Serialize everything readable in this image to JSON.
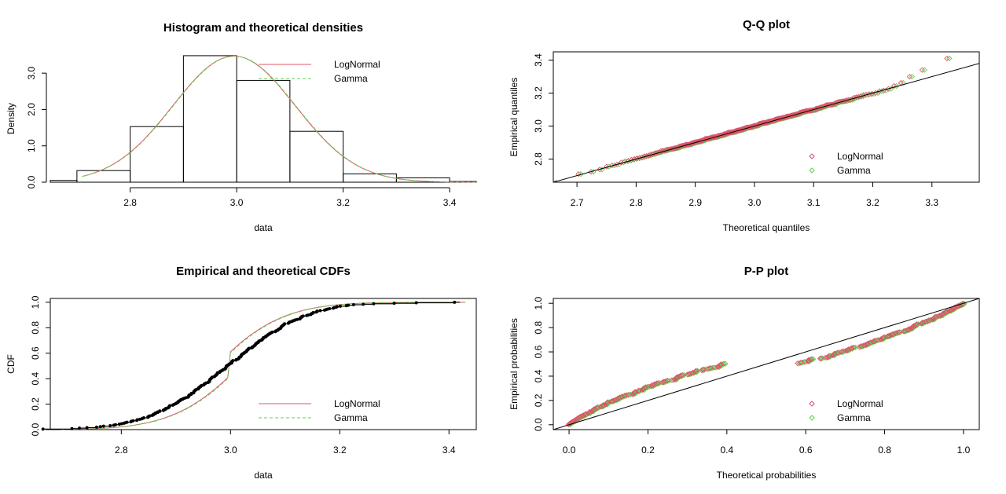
{
  "colors": {
    "lognormal": "#DF536B",
    "gamma": "#61D04F",
    "axis": "#000000"
  },
  "chart_data": [
    {
      "id": "hist",
      "type": "bar",
      "title": "Histogram and theoretical densities",
      "xlabel": "data",
      "ylabel": "Density",
      "xlim": [
        2.65,
        3.45
      ],
      "ylim": [
        0,
        3.5
      ],
      "xticks": [
        2.8,
        3.0,
        3.2,
        3.4
      ],
      "yticks": [
        0.0,
        1.0,
        2.0,
        3.0
      ],
      "xtick_labels": [
        "2.8",
        "3.0",
        "3.2",
        "3.4"
      ],
      "ytick_labels": [
        "0.0",
        "1.0",
        "2.0",
        "3.0"
      ],
      "bins": [
        {
          "x0": 2.6,
          "x1": 2.7,
          "density": 0.05
        },
        {
          "x0": 2.7,
          "x1": 2.8,
          "density": 0.32
        },
        {
          "x0": 2.8,
          "x1": 2.9,
          "density": 1.53
        },
        {
          "x0": 2.9,
          "x1": 3.0,
          "density": 3.48
        },
        {
          "x0": 3.0,
          "x1": 3.1,
          "density": 2.8
        },
        {
          "x0": 3.1,
          "x1": 3.2,
          "density": 1.4
        },
        {
          "x0": 3.2,
          "x1": 3.3,
          "density": 0.23
        },
        {
          "x0": 3.3,
          "x1": 3.4,
          "density": 0.12
        },
        {
          "x0": 3.4,
          "x1": 3.5,
          "density": 0.02
        }
      ],
      "density_params": {
        "mean": 2.995,
        "sd": 0.115
      },
      "series": [
        {
          "name": "LogNormal"
        },
        {
          "name": "Gamma"
        }
      ],
      "legend": "top-right"
    },
    {
      "id": "qq",
      "type": "scatter",
      "title": "Q-Q plot",
      "xlabel": "Theoretical quantiles",
      "ylabel": "Empirical quantiles",
      "xlim": [
        2.66,
        3.38
      ],
      "ylim": [
        2.66,
        3.45
      ],
      "xticks": [
        2.7,
        2.8,
        2.9,
        3.0,
        3.1,
        3.2,
        3.3
      ],
      "yticks": [
        2.8,
        3.0,
        3.2,
        3.4
      ],
      "xtick_labels": [
        "2.7",
        "2.8",
        "2.9",
        "3.0",
        "3.1",
        "3.2",
        "3.3"
      ],
      "ytick_labels": [
        "2.8",
        "3.0",
        "3.2",
        "3.4"
      ],
      "series": [
        {
          "name": "LogNormal"
        },
        {
          "name": "Gamma"
        }
      ],
      "legend": "bottom-right",
      "reference_line": "y = x"
    },
    {
      "id": "cdf",
      "type": "line",
      "title": "Empirical and theoretical CDFs",
      "xlabel": "data",
      "ylabel": "CDF",
      "xlim": [
        2.67,
        3.45
      ],
      "ylim": [
        0.0,
        1.03
      ],
      "xticks": [
        2.8,
        3.0,
        3.2,
        3.4
      ],
      "yticks": [
        0.0,
        0.2,
        0.4,
        0.6,
        0.8,
        1.0
      ],
      "xtick_labels": [
        "2.8",
        "3.0",
        "3.2",
        "3.4"
      ],
      "ytick_labels": [
        "0.0",
        "0.2",
        "0.4",
        "0.6",
        "0.8",
        "1.0"
      ],
      "series": [
        {
          "name": "LogNormal"
        },
        {
          "name": "Gamma"
        }
      ],
      "legend": "bottom-right"
    },
    {
      "id": "pp",
      "type": "scatter",
      "title": "P-P plot",
      "xlabel": "Theoretical probabilities",
      "ylabel": "Empirical probabilities",
      "xlim": [
        -0.04,
        1.04
      ],
      "ylim": [
        -0.04,
        1.04
      ],
      "xticks": [
        0.0,
        0.2,
        0.4,
        0.6,
        0.8,
        1.0
      ],
      "yticks": [
        0.0,
        0.2,
        0.4,
        0.6,
        0.8,
        1.0
      ],
      "xtick_labels": [
        "0.0",
        "0.2",
        "0.4",
        "0.6",
        "0.8",
        "1.0"
      ],
      "ytick_labels": [
        "0.0",
        "0.2",
        "0.4",
        "0.6",
        "0.8",
        "1.0"
      ],
      "series": [
        {
          "name": "LogNormal"
        },
        {
          "name": "Gamma"
        }
      ],
      "legend": "bottom-right",
      "reference_line": "y = x"
    }
  ]
}
